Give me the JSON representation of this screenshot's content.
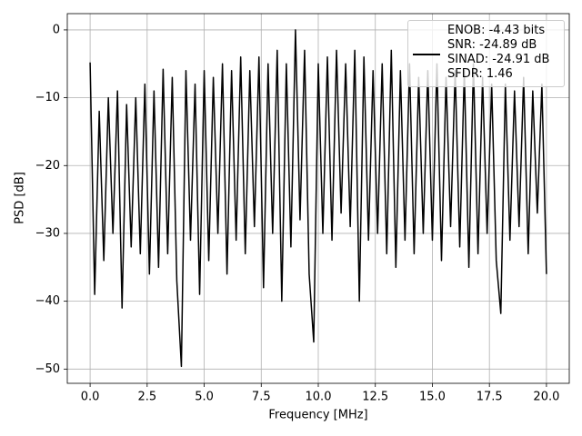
{
  "chart_data": {
    "type": "line",
    "x_label": "Frequency [MHz]",
    "y_label": "PSD [dB]",
    "x": [
      0,
      0.2,
      0.4,
      0.6,
      0.8,
      1.0,
      1.2,
      1.4,
      1.6,
      1.8,
      2.0,
      2.2,
      2.4,
      2.6,
      2.8,
      3.0,
      3.2,
      3.4,
      3.6,
      3.8,
      4.0,
      4.2,
      4.4,
      4.6,
      4.8,
      5.0,
      5.2,
      5.4,
      5.6,
      5.8,
      6.0,
      6.2,
      6.4,
      6.6,
      6.8,
      7.0,
      7.2,
      7.4,
      7.6,
      7.8,
      8.0,
      8.2,
      8.4,
      8.6,
      8.8,
      9.0,
      9.2,
      9.4,
      9.6,
      9.8,
      10.0,
      10.2,
      10.4,
      10.6,
      10.8,
      11.0,
      11.2,
      11.4,
      11.6,
      11.8,
      12.0,
      12.2,
      12.4,
      12.6,
      12.8,
      13.0,
      13.2,
      13.4,
      13.6,
      13.8,
      14.0,
      14.2,
      14.4,
      14.6,
      14.8,
      15.0,
      15.2,
      15.4,
      15.6,
      15.8,
      16.0,
      16.2,
      16.4,
      16.6,
      16.8,
      17.0,
      17.2,
      17.4,
      17.6,
      17.8,
      18.0,
      18.2,
      18.4,
      18.6,
      18.8,
      19.0,
      19.2,
      19.4,
      19.6,
      19.8,
      20.0
    ],
    "series": [
      {
        "name": "ENOB: -4.43 bits\nSNR: -24.89 dB\nSINAD: -24.91 dB\nSFDR: 1.46",
        "color": "#000000",
        "values": [
          -4.8,
          -39,
          -12,
          -34,
          -10,
          -30,
          -9,
          -41,
          -11,
          -32,
          -10,
          -33,
          -8,
          -36,
          -9,
          -35,
          -5.8,
          -33,
          -7,
          -37,
          -49.6,
          -6,
          -31,
          -8,
          -39,
          -6,
          -34,
          -7,
          -30,
          -5,
          -36,
          -6,
          -31,
          -4,
          -33,
          -6,
          -29,
          -4,
          -38,
          -5,
          -30,
          -3,
          -40,
          -5,
          -32,
          0,
          -28,
          -3,
          -36,
          -46,
          -5,
          -30,
          -4,
          -31,
          -3,
          -27,
          -5,
          -29,
          -3,
          -40,
          -4,
          -31,
          -6,
          -30,
          -5,
          -33,
          -3,
          -35,
          -6,
          -31,
          -5,
          -33,
          -7,
          -30,
          -6,
          -31,
          -5,
          -34,
          -7,
          -29,
          -6,
          -32,
          -6,
          -35,
          -5,
          -33,
          -7,
          -30,
          -8,
          -34,
          -41.8,
          -8,
          -31,
          -9,
          -29,
          -7,
          -33,
          -9,
          -27,
          -8,
          -36
        ]
      }
    ],
    "xlim": [
      -1.0,
      21.0
    ],
    "xticks": [
      {
        "value": 0,
        "label": "0.0"
      },
      2.5,
      {
        "value": 5,
        "label": "5.0"
      },
      7.5,
      {
        "value": 10,
        "label": "10.0"
      },
      12.5,
      {
        "value": 15,
        "label": "15.0"
      },
      17.5,
      {
        "value": 20,
        "label": "20.0"
      }
    ],
    "ylim": [
      -52.1,
      2.4
    ],
    "yticks": [
      {
        "value": -50,
        "label": "−50"
      },
      {
        "value": -40,
        "label": "−40"
      },
      {
        "value": -30,
        "label": "−30"
      },
      {
        "value": -20,
        "label": "−20"
      },
      {
        "value": -10,
        "label": "−10"
      },
      0
    ],
    "grid": true,
    "legend": "upper right"
  }
}
